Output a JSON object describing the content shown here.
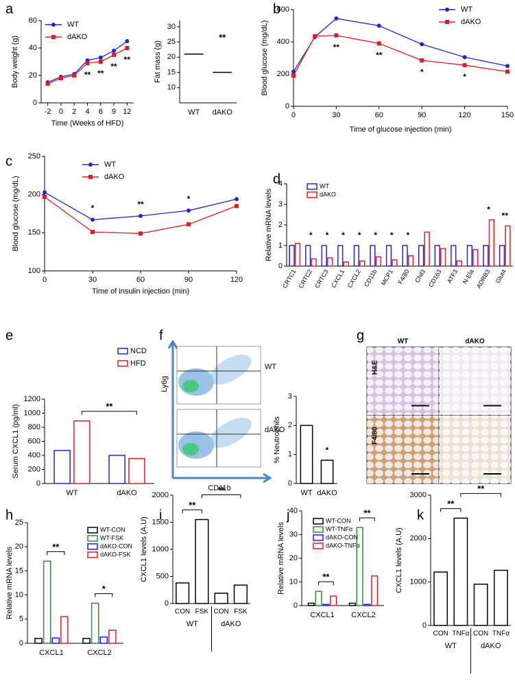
{
  "chart_data": [
    {
      "panel": "a",
      "type": "line",
      "categories": [
        "-2",
        "0",
        "2",
        "4",
        "6",
        "9",
        "12"
      ],
      "ylim": [
        0,
        60
      ],
      "yticks": [
        0,
        20,
        40,
        60
      ],
      "xlabel": "Time (Weeks of HFD)",
      "ylabel": "Body weight (g)",
      "annotation_side": "below",
      "series": [
        {
          "name": "WT",
          "color": "#2323d6",
          "marker": "circle",
          "values": [
            15,
            19,
            21,
            31,
            33,
            38,
            45
          ]
        },
        {
          "name": "dAKO",
          "color": "#e21b23",
          "marker": "square",
          "values": [
            14,
            18,
            20,
            29,
            30,
            35,
            40
          ]
        }
      ],
      "annotations": [
        {
          "text": "**",
          "category": "4"
        },
        {
          "text": "**",
          "category": "6"
        },
        {
          "text": "**",
          "category": "9"
        },
        {
          "text": "**",
          "category": "12"
        }
      ]
    },
    {
      "type": "dot",
      "categories": [
        "WT",
        "dAKO"
      ],
      "values": [
        21,
        15
      ],
      "color": "#2323d6",
      "ylim": [
        5,
        32
      ],
      "yticks": [
        10,
        15,
        20,
        25,
        30
      ],
      "ylabel": "Fat mass (g)",
      "annotations": [
        {
          "text": "**",
          "category": "dAKO"
        }
      ]
    },
    {
      "panel": "b",
      "type": "line",
      "x": [
        0,
        15,
        30,
        60,
        90,
        120,
        150
      ],
      "xlim": [
        0,
        150
      ],
      "xticks": [
        0,
        30,
        60,
        90,
        120,
        150
      ],
      "ylim": [
        0,
        600
      ],
      "yticks": [
        0,
        200,
        400,
        600
      ],
      "xlabel": "Time of glucose injection (min)",
      "ylabel": "Blood glucose (mg/dL)",
      "annotation_side": "below",
      "series": [
        {
          "name": "WT",
          "color": "#2323d6",
          "marker": "circle",
          "values": [
            215,
            430,
            545,
            500,
            385,
            305,
            250
          ]
        },
        {
          "name": "dAKO",
          "color": "#e21b23",
          "marker": "square",
          "values": [
            190,
            435,
            440,
            390,
            285,
            255,
            215
          ]
        }
      ],
      "annotations": [
        {
          "text": "**",
          "x": 30
        },
        {
          "text": "**",
          "x": 60
        },
        {
          "text": "*",
          "x": 90
        },
        {
          "text": "*",
          "x": 120
        }
      ]
    },
    {
      "panel": "c",
      "type": "line",
      "x": [
        0,
        30,
        60,
        90,
        120
      ],
      "xlim": [
        0,
        120
      ],
      "xticks": [
        0,
        30,
        60,
        90,
        120
      ],
      "ylim": [
        100,
        250
      ],
      "yticks": [
        100,
        150,
        200,
        250
      ],
      "xlabel": "Time of insulin injection (min)",
      "ylabel": "Blood glucose (mg/dL)",
      "annotation_side": "above",
      "series": [
        {
          "name": "WT",
          "color": "#2323d6",
          "marker": "circle",
          "values": [
            203,
            167,
            172,
            179,
            194
          ]
        },
        {
          "name": "dAKO",
          "color": "#e21b23",
          "marker": "square",
          "values": [
            197,
            151,
            149,
            161,
            185
          ]
        }
      ],
      "annotations": [
        {
          "text": "*",
          "x": 30
        },
        {
          "text": "**",
          "x": 60
        },
        {
          "text": "*",
          "x": 90
        }
      ]
    },
    {
      "panel": "d",
      "type": "bar",
      "categories": [
        "CRTC1",
        "CRTC2",
        "CRTC3",
        "CXCL1",
        "CXCL2",
        "CD11b",
        "MCP1",
        "F4/80",
        "Chil3",
        "CD163",
        "ATF3",
        "N-Ela",
        "ADRB3",
        "Glut4"
      ],
      "ylim": [
        0,
        4
      ],
      "yticks": [
        0,
        1,
        2,
        3,
        4
      ],
      "ylabel": "Relative mRNA levels",
      "series": [
        {
          "name": "WT",
          "color": "#2323d6",
          "values": [
            1,
            1,
            1,
            1,
            1,
            1,
            1,
            1,
            1,
            1,
            1,
            1,
            1,
            1
          ]
        },
        {
          "name": "dAKO",
          "color": "#e21b23",
          "values": [
            1.1,
            0.35,
            0.4,
            0.2,
            0.25,
            0.45,
            0.3,
            0.5,
            1.65,
            0.85,
            0.25,
            0.8,
            2.25,
            1.95
          ]
        }
      ],
      "annotations": [
        {
          "text": "*",
          "category": "CRTC2"
        },
        {
          "text": "*",
          "category": "CRTC3"
        },
        {
          "text": "*",
          "category": "CXCL1"
        },
        {
          "text": "*",
          "category": "CXCL2"
        },
        {
          "text": "*",
          "category": "CD11b"
        },
        {
          "text": "*",
          "category": "MCP1"
        },
        {
          "text": "*",
          "category": "F4/80"
        },
        {
          "text": "*",
          "category": "ADRB3"
        },
        {
          "text": "**",
          "category": "Glut4"
        }
      ]
    },
    {
      "panel": "e",
      "type": "bar",
      "categories": [
        "WT",
        "dAKO"
      ],
      "ylim": [
        0,
        1200
      ],
      "yticks": [
        0,
        200,
        400,
        600,
        800,
        1000,
        1200
      ],
      "ylabel": "Serum CXCL1 (pg/ml)",
      "series": [
        {
          "name": "NCD",
          "color": "#2323d6",
          "values": [
            470,
            400
          ]
        },
        {
          "name": "HFD",
          "color": "#e21b23",
          "values": [
            890,
            355
          ]
        }
      ],
      "brackets": [
        {
          "text": "**",
          "from": [
            "WT",
            "HFD"
          ],
          "to": [
            "dAKO",
            "HFD"
          ]
        }
      ]
    },
    {
      "panel": "f",
      "type": "bar",
      "categories": [
        "WT",
        "dAKO"
      ],
      "values": [
        2,
        0.8
      ],
      "color": "#000000",
      "ylim": [
        0,
        3
      ],
      "yticks": [
        0,
        1,
        2,
        3
      ],
      "ylabel": "% Neutrophils",
      "annotations": [
        {
          "text": "*",
          "category": "dAKO"
        }
      ],
      "flow": {
        "samples": [
          "WT",
          "dAKO"
        ],
        "ylabel": "Ly6g",
        "xlabel": "CD11b"
      }
    },
    {
      "panel": "g",
      "type": "image_grid",
      "columns": [
        "WT",
        "dAKO"
      ],
      "rows": [
        "H&E",
        "F4/80"
      ]
    },
    {
      "panel": "h",
      "type": "bar",
      "categories": [
        "CXCL1",
        "CXCL2"
      ],
      "ylim": [
        0,
        25
      ],
      "yticks": [
        0,
        5,
        10,
        15,
        20,
        25
      ],
      "ylabel": "Relative mRNA levels",
      "series": [
        {
          "name": "WT-CON",
          "color": "#000000",
          "values": [
            1,
            1
          ]
        },
        {
          "name": "WT-FSK",
          "color": "#2e8b3a",
          "values": [
            17,
            8.3
          ]
        },
        {
          "name": "dAKO-CON",
          "color": "#1a1aff",
          "values": [
            1.1,
            1.3
          ]
        },
        {
          "name": "dAKO-FSK",
          "color": "#e21b23",
          "values": [
            5.5,
            2.7
          ]
        }
      ],
      "brackets": [
        {
          "text": "**",
          "from": [
            "CXCL1",
            "WT-FSK"
          ],
          "to": [
            "CXCL1",
            "dAKO-FSK"
          ]
        },
        {
          "text": "*",
          "from": [
            "CXCL2",
            "WT-FSK"
          ],
          "to": [
            "CXCL2",
            "dAKO-FSK"
          ]
        }
      ]
    },
    {
      "panel": "i",
      "type": "group_bar",
      "ylim": [
        0,
        2000
      ],
      "yticks": [
        0,
        500,
        1000,
        1500,
        2000
      ],
      "ylabel": "CXCL1 levels (A.U)",
      "color": "#000000",
      "groups": [
        {
          "name": "WT",
          "categories": [
            "CON",
            "FSK"
          ],
          "values": [
            380,
            1550
          ]
        },
        {
          "name": "dAKO",
          "categories": [
            "CON",
            "FSK"
          ],
          "values": [
            190,
            340
          ]
        }
      ],
      "brackets": [
        {
          "text": "**",
          "from": [
            "WT",
            "CON"
          ],
          "to": [
            "WT",
            "FSK"
          ]
        },
        {
          "text": "**",
          "from": [
            "WT",
            "FSK"
          ],
          "to": [
            "dAKO",
            "FSK"
          ]
        }
      ]
    },
    {
      "panel": "j",
      "type": "bar",
      "categories": [
        "CXCL1",
        "CXCL2"
      ],
      "ylim": [
        0,
        40
      ],
      "yticks": [
        0,
        10,
        20,
        30,
        40
      ],
      "ylabel": "Relative mRNA levels",
      "series": [
        {
          "name": "WT-CON",
          "color": "#000000",
          "values": [
            1,
            1
          ]
        },
        {
          "name": "WT-TNFα",
          "color": "#2e8b3a",
          "values": [
            6,
            33
          ]
        },
        {
          "name": "dAKO-CON",
          "color": "#1a1aff",
          "values": [
            0.5,
            0.5
          ]
        },
        {
          "name": "dAKO-TNFα",
          "color": "#e21b23",
          "values": [
            4,
            12.5
          ]
        }
      ],
      "brackets": [
        {
          "text": "**",
          "from": [
            "CXCL1",
            "WT-TNFα"
          ],
          "to": [
            "CXCL1",
            "dAKO-TNFα"
          ]
        },
        {
          "text": "**",
          "from": [
            "CXCL2",
            "WT-TNFα"
          ],
          "to": [
            "CXCL2",
            "dAKO-TNFα"
          ]
        }
      ]
    },
    {
      "panel": "k",
      "type": "group_bar",
      "ylim": [
        0,
        3000
      ],
      "yticks": [
        0,
        1000,
        2000,
        3000
      ],
      "ylabel": "CXCL1 levels (A.U)",
      "color": "#000000",
      "groups": [
        {
          "name": "WT",
          "categories": [
            "CON",
            "TNFα"
          ],
          "values": [
            1230,
            2470
          ]
        },
        {
          "name": "dAKO",
          "categories": [
            "CON",
            "TNFα"
          ],
          "values": [
            950,
            1270
          ]
        }
      ],
      "brackets": [
        {
          "text": "**",
          "from": [
            "WT",
            "CON"
          ],
          "to": [
            "WT",
            "TNFα"
          ]
        },
        {
          "text": "**",
          "from": [
            "WT",
            "TNFα"
          ],
          "to": [
            "dAKO",
            "TNFα"
          ]
        }
      ]
    }
  ]
}
